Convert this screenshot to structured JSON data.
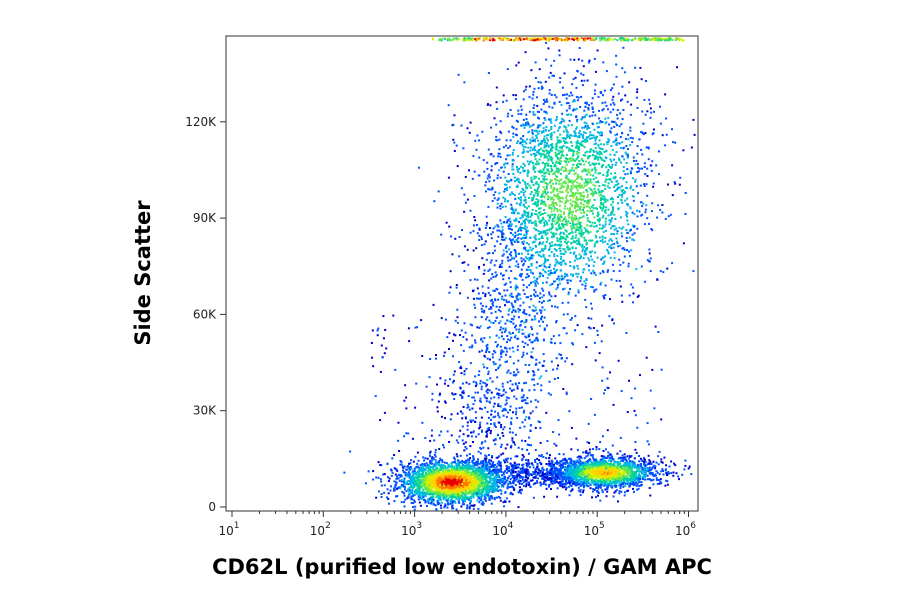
{
  "chart_data": {
    "type": "heatmap",
    "subtype": "flow-cytometry-density-dot-plot",
    "title": "",
    "xlabel": "CD62L (purified low endotoxin) / GAM APC",
    "ylabel": "Side Scatter",
    "x_scale": "log",
    "xlim": [
      10,
      1000000
    ],
    "x_ticks": [
      {
        "value": 10,
        "base": "10",
        "exp": "1"
      },
      {
        "value": 100,
        "base": "10",
        "exp": "2"
      },
      {
        "value": 1000,
        "base": "10",
        "exp": "3"
      },
      {
        "value": 10000,
        "base": "10",
        "exp": "4"
      },
      {
        "value": 100000,
        "base": "10",
        "exp": "5"
      },
      {
        "value": 1000000,
        "base": "10",
        "exp": "6"
      }
    ],
    "y_scale": "linear",
    "ylim": [
      0,
      145000
    ],
    "y_ticks": [
      {
        "value": 0,
        "label": "0"
      },
      {
        "value": 30000,
        "label": "30K"
      },
      {
        "value": 60000,
        "label": "60K"
      },
      {
        "value": 90000,
        "label": "90K"
      },
      {
        "value": 120000,
        "label": "120K"
      }
    ],
    "grid": false,
    "legend": "none",
    "color_scale": [
      "#0000c8",
      "#0050ff",
      "#00b4e6",
      "#00d2a0",
      "#64e650",
      "#d2f000",
      "#ffd200",
      "#ff7800",
      "#e60000"
    ],
    "populations": [
      {
        "x_center": 2500,
        "y_center": 8000,
        "relative_density": 1.0
      },
      {
        "x_center": 120000,
        "y_center": 11000,
        "relative_density": 0.7
      },
      {
        "x_center": 50000,
        "y_center": 98000,
        "relative_density": 0.45
      },
      {
        "x_center": 15000,
        "y_center": 50000,
        "relative_density": 0.15
      },
      {
        "x_center": 40000,
        "y_center": 144000,
        "relative_density": 0.3
      }
    ]
  }
}
